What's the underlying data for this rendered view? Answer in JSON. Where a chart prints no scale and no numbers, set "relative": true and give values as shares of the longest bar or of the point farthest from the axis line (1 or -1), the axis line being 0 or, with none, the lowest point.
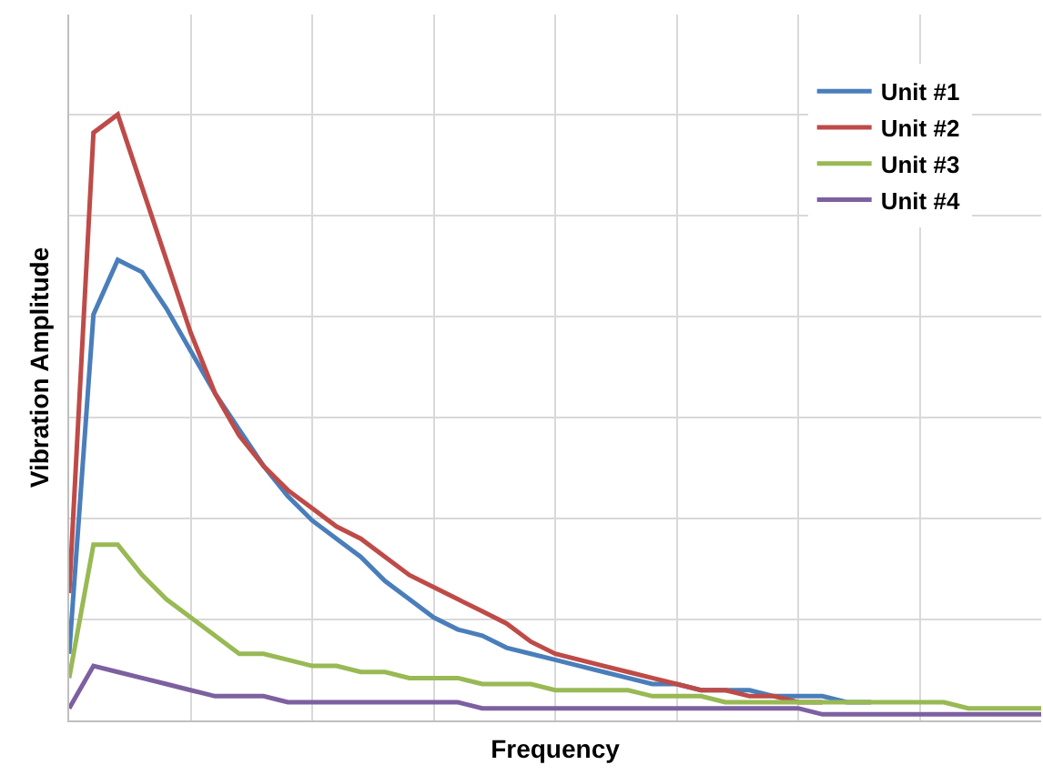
{
  "chart_data": {
    "type": "line",
    "relative": true,
    "xlabel": "Frequency",
    "ylabel": "Vibration Amplitude",
    "grid": true,
    "legend": "top right",
    "marker": "none",
    "line_style": "solid",
    "categories": [
      null,
      null,
      null,
      null,
      null,
      null,
      null,
      null,
      null,
      null,
      null,
      null,
      null,
      null,
      null,
      null,
      null,
      null,
      null,
      null,
      null,
      null,
      null,
      null,
      null,
      null,
      null,
      null,
      null,
      null,
      null,
      null,
      null,
      null,
      null,
      null,
      null,
      null,
      null,
      null,
      null
    ],
    "series": [
      {
        "name": "Unit #1",
        "color": "#4a7ebb",
        "values": [
          0.11,
          0.67,
          0.76,
          0.74,
          0.68,
          0.61,
          0.54,
          0.48,
          0.42,
          0.37,
          0.33,
          0.3,
          0.27,
          0.23,
          0.2,
          0.17,
          0.15,
          0.14,
          0.12,
          0.11,
          0.1,
          0.09,
          0.08,
          0.07,
          0.06,
          0.06,
          0.05,
          0.05,
          0.05,
          0.04,
          0.04,
          0.04,
          0.03,
          0.03,
          null,
          null,
          null,
          null,
          null,
          null,
          null
        ]
      },
      {
        "name": "Unit #2",
        "color": "#be4b48",
        "values": [
          0.21,
          0.97,
          1,
          0.88,
          0.76,
          0.64,
          0.54,
          0.47,
          0.42,
          0.38,
          0.35,
          0.32,
          0.3,
          0.27,
          0.24,
          0.22,
          0.2,
          0.18,
          0.16,
          0.13,
          0.11,
          0.1,
          0.09,
          0.08,
          0.07,
          0.06,
          0.05,
          0.05,
          0.04,
          0.04,
          0.03,
          0.03,
          null,
          null,
          null,
          null,
          null,
          null,
          null,
          null,
          null
        ]
      },
      {
        "name": "Unit #3",
        "color": "#98b954",
        "values": [
          0.07,
          0.29,
          0.29,
          0.24,
          0.2,
          0.17,
          0.14,
          0.11,
          0.11,
          0.1,
          0.09,
          0.09,
          0.08,
          0.08,
          0.07,
          0.07,
          0.07,
          0.06,
          0.06,
          0.06,
          0.05,
          0.05,
          0.05,
          0.05,
          0.04,
          0.04,
          0.04,
          0.03,
          0.03,
          0.03,
          0.03,
          0.03,
          0.03,
          0.03,
          0.03,
          0.03,
          0.03,
          0.02,
          0.02,
          0.02,
          0.02
        ]
      },
      {
        "name": "Unit #4",
        "color": "#7d60a0",
        "values": [
          0.02,
          0.09,
          0.08,
          0.07,
          0.06,
          0.05,
          0.04,
          0.04,
          0.04,
          0.03,
          0.03,
          0.03,
          0.03,
          0.03,
          0.03,
          0.03,
          0.03,
          0.02,
          0.02,
          0.02,
          0.02,
          0.02,
          0.02,
          0.02,
          0.02,
          0.02,
          0.02,
          0.02,
          0.02,
          0.02,
          0.02,
          0.01,
          0.01,
          0.01,
          0.01,
          0.01,
          0.01,
          0.01,
          0.01,
          0.01,
          0.01
        ]
      }
    ]
  }
}
